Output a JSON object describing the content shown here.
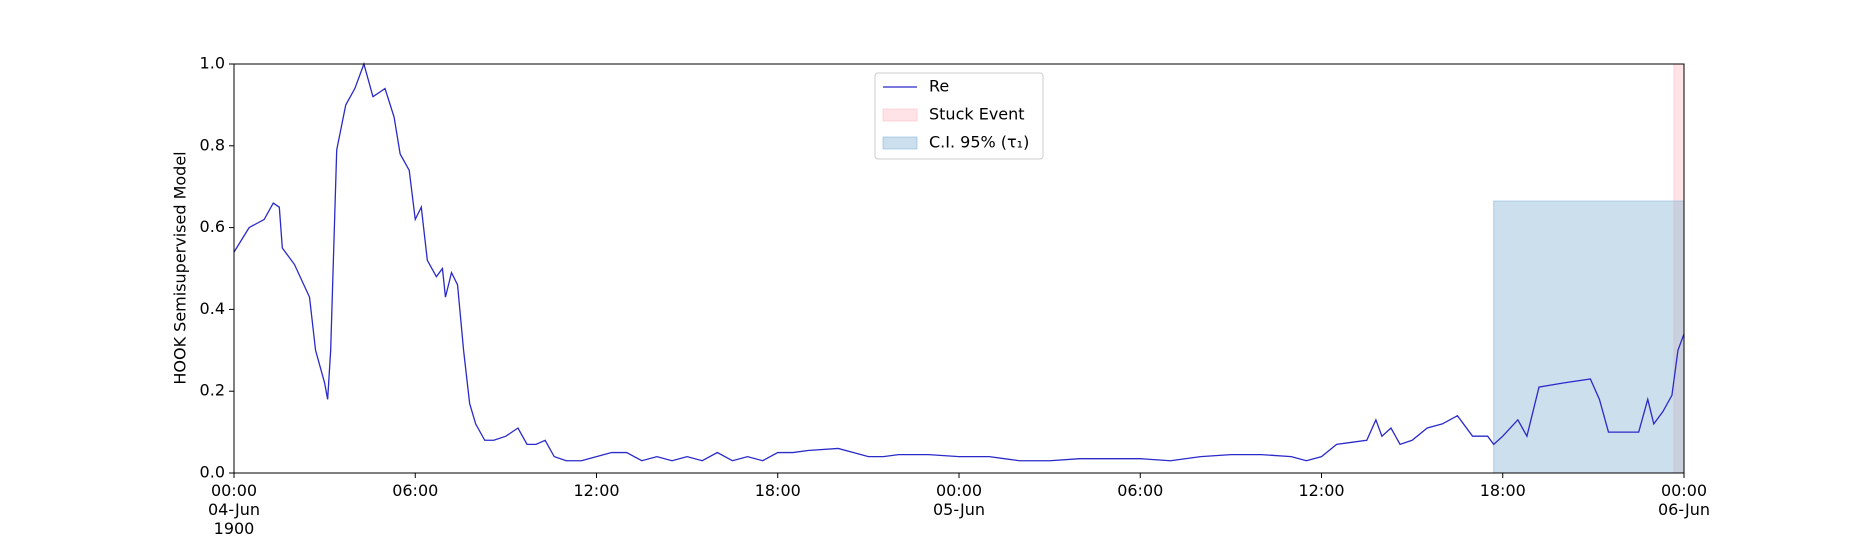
{
  "chart_data": {
    "type": "line",
    "ylabel": "HOOK Semisupervised Model",
    "x": [
      "1900-06-04 00:00",
      "1900-06-04 00:30",
      "1900-06-04 01:00",
      "1900-06-04 01:18",
      "1900-06-04 01:30",
      "1900-06-04 01:36",
      "1900-06-04 02:00",
      "1900-06-04 02:30",
      "1900-06-04 02:42",
      "1900-06-04 03:00",
      "1900-06-04 03:06",
      "1900-06-04 03:12",
      "1900-06-04 03:24",
      "1900-06-04 03:42",
      "1900-06-04 04:00",
      "1900-06-04 04:18",
      "1900-06-04 04:36",
      "1900-06-04 05:00",
      "1900-06-04 05:18",
      "1900-06-04 05:30",
      "1900-06-04 05:48",
      "1900-06-04 06:00",
      "1900-06-04 06:12",
      "1900-06-04 06:24",
      "1900-06-04 06:42",
      "1900-06-04 06:54",
      "1900-06-04 07:00",
      "1900-06-04 07:12",
      "1900-06-04 07:24",
      "1900-06-04 07:36",
      "1900-06-04 07:48",
      "1900-06-04 08:00",
      "1900-06-04 08:18",
      "1900-06-04 08:36",
      "1900-06-04 09:00",
      "1900-06-04 09:24",
      "1900-06-04 09:42",
      "1900-06-04 10:00",
      "1900-06-04 10:18",
      "1900-06-04 10:36",
      "1900-06-04 11:00",
      "1900-06-04 11:30",
      "1900-06-04 12:00",
      "1900-06-04 12:30",
      "1900-06-04 13:00",
      "1900-06-04 13:30",
      "1900-06-04 14:00",
      "1900-06-04 14:30",
      "1900-06-04 15:00",
      "1900-06-04 15:30",
      "1900-06-04 16:00",
      "1900-06-04 16:30",
      "1900-06-04 17:00",
      "1900-06-04 17:30",
      "1900-06-04 18:00",
      "1900-06-04 18:30",
      "1900-06-04 19:00",
      "1900-06-04 20:00",
      "1900-06-04 20:30",
      "1900-06-04 21:00",
      "1900-06-04 21:30",
      "1900-06-04 22:00",
      "1900-06-04 23:00",
      "1900-06-05 00:00",
      "1900-06-05 01:00",
      "1900-06-05 01:30",
      "1900-06-05 02:00",
      "1900-06-05 03:00",
      "1900-06-05 04:00",
      "1900-06-05 05:00",
      "1900-06-05 06:00",
      "1900-06-05 07:00",
      "1900-06-05 08:00",
      "1900-06-05 09:00",
      "1900-06-05 10:00",
      "1900-06-05 11:00",
      "1900-06-05 11:30",
      "1900-06-05 12:00",
      "1900-06-05 12:30",
      "1900-06-05 13:00",
      "1900-06-05 13:30",
      "1900-06-05 13:48",
      "1900-06-05 14:00",
      "1900-06-05 14:18",
      "1900-06-05 14:36",
      "1900-06-05 15:00",
      "1900-06-05 15:30",
      "1900-06-05 16:00",
      "1900-06-05 16:30",
      "1900-06-05 17:00",
      "1900-06-05 17:30",
      "1900-06-05 17:42",
      "1900-06-05 18:00",
      "1900-06-05 18:30",
      "1900-06-05 18:48",
      "1900-06-05 19:12",
      "1900-06-05 20:00",
      "1900-06-05 20:54",
      "1900-06-05 21:12",
      "1900-06-05 21:30",
      "1900-06-05 22:30",
      "1900-06-05 22:48",
      "1900-06-05 23:00",
      "1900-06-05 23:18",
      "1900-06-05 23:36",
      "1900-06-05 23:48",
      "1900-06-06 00:00"
    ],
    "series": [
      {
        "name": "Re",
        "color": "#2a2ac8",
        "values": [
          0.54,
          0.6,
          0.62,
          0.66,
          0.65,
          0.55,
          0.51,
          0.43,
          0.3,
          0.22,
          0.18,
          0.3,
          0.79,
          0.9,
          0.94,
          1.0,
          0.92,
          0.94,
          0.87,
          0.78,
          0.74,
          0.62,
          0.65,
          0.52,
          0.48,
          0.5,
          0.43,
          0.49,
          0.46,
          0.3,
          0.17,
          0.12,
          0.08,
          0.08,
          0.09,
          0.11,
          0.07,
          0.07,
          0.08,
          0.04,
          0.03,
          0.03,
          0.04,
          0.05,
          0.05,
          0.03,
          0.04,
          0.03,
          0.04,
          0.03,
          0.05,
          0.03,
          0.04,
          0.03,
          0.05,
          0.05,
          0.055,
          0.06,
          0.05,
          0.04,
          0.04,
          0.045,
          0.045,
          0.04,
          0.04,
          0.035,
          0.03,
          0.03,
          0.035,
          0.035,
          0.035,
          0.03,
          0.04,
          0.045,
          0.045,
          0.04,
          0.03,
          0.04,
          0.07,
          0.075,
          0.08,
          0.13,
          0.09,
          0.11,
          0.07,
          0.08,
          0.11,
          0.12,
          0.14,
          0.09,
          0.09,
          0.07,
          0.09,
          0.13,
          0.09,
          0.21,
          0.22,
          0.23,
          0.18,
          0.1,
          0.1,
          0.18,
          0.12,
          0.15,
          0.19,
          0.3,
          0.34
        ]
      }
    ],
    "spans": [
      {
        "name": "Stuck Event",
        "color": "#ffc0c8",
        "x": [
          "1900-06-05 23:40",
          "1900-06-06 00:00"
        ],
        "y": [
          0,
          1.0
        ]
      },
      {
        "name": "C.I. 95% (τ₁)",
        "color": "#8cb8d8",
        "x": [
          "1900-06-05 17:42",
          "1900-06-06 00:00"
        ],
        "y": [
          0,
          0.665
        ]
      }
    ],
    "xlim": [
      "1900-06-04 00:00",
      "1900-06-06 00:00"
    ],
    "xticks": [
      {
        "value": "1900-06-04 00:00",
        "label": "00:00\n04-Jun\n1900"
      },
      {
        "value": "1900-06-04 06:00",
        "label": "06:00"
      },
      {
        "value": "1900-06-04 12:00",
        "label": "12:00"
      },
      {
        "value": "1900-06-04 18:00",
        "label": "18:00"
      },
      {
        "value": "1900-06-05 00:00",
        "label": "00:00\n05-Jun"
      },
      {
        "value": "1900-06-05 06:00",
        "label": "06:00"
      },
      {
        "value": "1900-06-05 12:00",
        "label": "12:00"
      },
      {
        "value": "1900-06-05 18:00",
        "label": "18:00"
      },
      {
        "value": "1900-06-06 00:00",
        "label": "00:00\n06-Jun"
      }
    ],
    "ylim": [
      0,
      1.0
    ],
    "yticks": [
      {
        "value": 0,
        "label": "0.0"
      },
      0.2,
      0.4,
      0.6,
      0.8,
      {
        "value": 1.0,
        "label": "1.0"
      }
    ],
    "legend": "upper center"
  }
}
